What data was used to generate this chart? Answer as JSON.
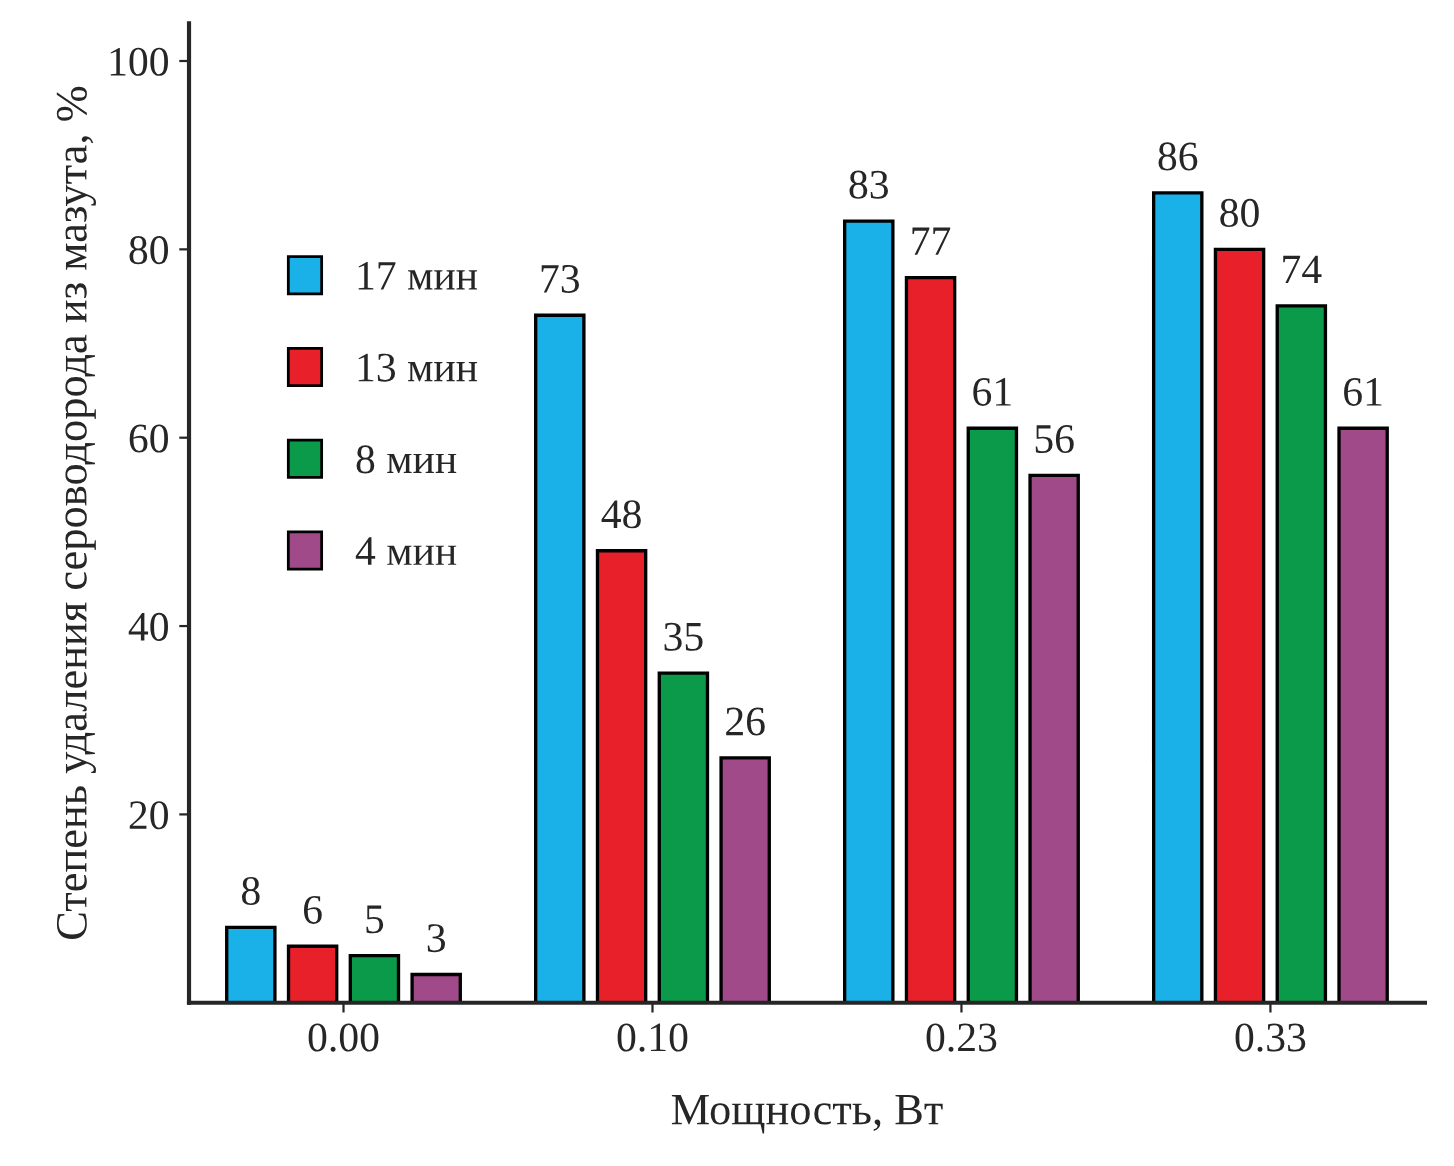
{
  "chart_data": {
    "type": "bar",
    "xlabel": "Мощность, Вт",
    "ylabel": "Степень удаления сероводорода из мазута, %",
    "categories": [
      "0.00",
      "0.10",
      "0.23",
      "0.33"
    ],
    "series": [
      {
        "name": "17 мин",
        "color": "#1ab0e8",
        "values": [
          8,
          73,
          83,
          86
        ]
      },
      {
        "name": "13 мин",
        "color": "#e8202a",
        "values": [
          6,
          48,
          77,
          80
        ]
      },
      {
        "name": "8 мин",
        "color": "#0a9a4a",
        "values": [
          5,
          35,
          61,
          74
        ]
      },
      {
        "name": "4 мин",
        "color": "#a04a8a",
        "values": [
          3,
          26,
          56,
          61
        ]
      }
    ],
    "ylim": [
      0,
      104
    ],
    "yticks": [
      20,
      40,
      60,
      80,
      100
    ],
    "data_labels": true,
    "legend": "left",
    "grid": false
  }
}
